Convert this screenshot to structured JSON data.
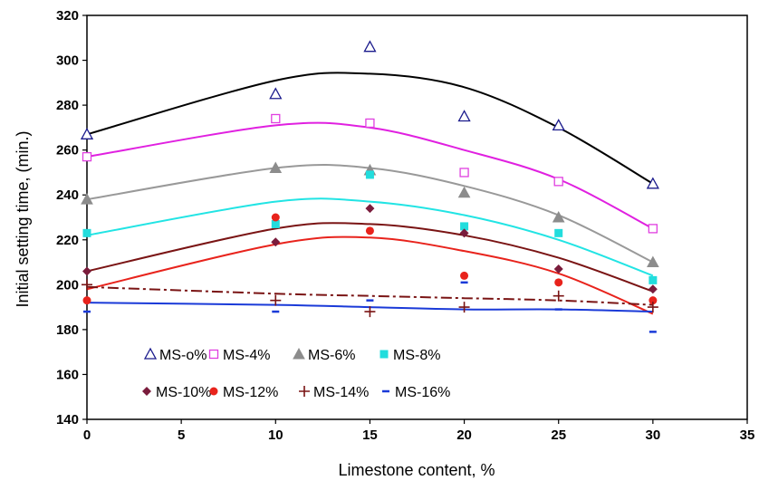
{
  "chart_data": {
    "type": "scatter",
    "xlabel": "Limestone content, %",
    "ylabel": "Initial setting time, (min.)",
    "xlim": [
      0,
      35
    ],
    "ylim": [
      140,
      320
    ],
    "xticks": [
      0,
      5,
      10,
      15,
      20,
      25,
      30,
      35
    ],
    "yticks": [
      140,
      160,
      180,
      200,
      220,
      240,
      260,
      280,
      300,
      320
    ],
    "grid": false,
    "legend_position": "bottom-left inside",
    "x": [
      0,
      10,
      15,
      20,
      25,
      30
    ],
    "series": [
      {
        "name": "MS-o%",
        "marker": "triangle-open",
        "color": "#1a1a8c",
        "trend_color": "#000000",
        "trend_style": "solid",
        "values": [
          267,
          285,
          306,
          275,
          271,
          245
        ],
        "trend": [
          267,
          291,
          294,
          288,
          270,
          245
        ]
      },
      {
        "name": "MS-4%",
        "marker": "square-open",
        "color": "#e040e0",
        "trend_color": "#e020e0",
        "trend_style": "solid",
        "values": [
          257,
          274,
          272,
          250,
          246,
          225
        ],
        "trend": [
          257,
          271,
          270,
          260,
          247,
          225
        ]
      },
      {
        "name": "MS-6%",
        "marker": "triangle-filled",
        "color": "#8c8c8c",
        "trend_color": "#999999",
        "trend_style": "solid",
        "values": [
          238,
          252,
          251,
          241,
          230,
          210
        ],
        "trend": [
          238,
          252,
          252,
          244,
          231,
          210
        ]
      },
      {
        "name": "MS-8%",
        "marker": "square-filled",
        "color": "#22dddd",
        "trend_color": "#22e4e4",
        "trend_style": "solid",
        "values": [
          223,
          227,
          249,
          226,
          223,
          202
        ],
        "trend": [
          222,
          237,
          237,
          231,
          220,
          204
        ]
      },
      {
        "name": "MS-10%",
        "marker": "diamond",
        "color": "#7a1c3c",
        "trend_color": "#7a1414",
        "trend_style": "solid",
        "values": [
          206,
          219,
          234,
          223,
          207,
          198
        ],
        "trend": [
          206,
          225,
          227,
          222,
          212,
          197
        ]
      },
      {
        "name": "MS-12%",
        "marker": "circle",
        "color": "#e8231c",
        "trend_color": "#e8231c",
        "trend_style": "solid",
        "values": [
          193,
          230,
          224,
          204,
          201,
          193
        ],
        "trend": [
          198,
          218,
          221,
          215,
          205,
          187
        ]
      },
      {
        "name": "MS-14%",
        "marker": "plus",
        "color": "#7a1414",
        "trend_color": "#7a1414",
        "trend_style": "dashdot",
        "values": [
          200,
          193,
          188,
          190,
          195,
          190
        ],
        "trend": [
          199,
          196,
          195,
          194,
          193,
          191
        ]
      },
      {
        "name": "MS-16%",
        "marker": "dash",
        "color": "#1a3ad8",
        "trend_color": "#1a3ad8",
        "trend_style": "solid",
        "values": [
          188,
          188,
          193,
          201,
          189,
          179
        ],
        "trend": [
          192,
          191,
          190,
          189,
          189,
          188
        ]
      }
    ]
  }
}
